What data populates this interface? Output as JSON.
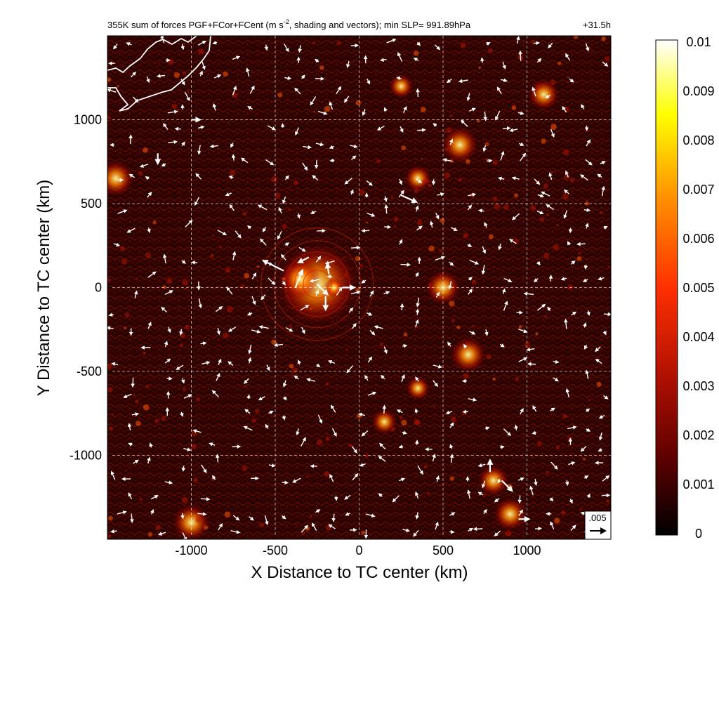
{
  "chart_data": {
    "type": "heatmap",
    "title": "355K sum of forces PGF+FCor+FCent (m s",
    "title_superscript": "-2",
    "title_suffix": ", shading and vectors); min SLP= 991.89hPa",
    "time_label": "+31.5h",
    "xlabel": "X Distance to TC center (km)",
    "ylabel": "Y Distance to TC center (km)",
    "xlim": [
      -1500,
      1500
    ],
    "ylim": [
      -1500,
      1500
    ],
    "xticks": [
      -1000,
      -500,
      0,
      500,
      1000
    ],
    "yticks": [
      -1000,
      -500,
      0,
      500,
      1000
    ],
    "xtick_labels": [
      "-1000",
      "-500",
      "0",
      "500",
      "1000"
    ],
    "ytick_labels": [
      "-1000",
      "-500",
      "0",
      "500",
      "1000"
    ],
    "grid": true,
    "grid_style": "dashed",
    "colormap": [
      "#000000",
      "#5a0000",
      "#b01000",
      "#ff3000",
      "#ff9000",
      "#ffff00",
      "#ffffff"
    ],
    "colorbar": {
      "min": 0,
      "max": 0.01,
      "tick_labels": [
        "0.01",
        "0.009",
        "0.008",
        "0.007",
        "0.006",
        "0.005",
        "0.004",
        "0.003",
        "0.002",
        "0.001",
        "0"
      ],
      "tick_values": [
        0.01,
        0.009,
        0.008,
        0.007,
        0.006,
        0.005,
        0.004,
        0.003,
        0.002,
        0.001,
        0
      ]
    },
    "reference_vector": {
      "label": ".005",
      "value": 0.005
    },
    "features": {
      "tc_center_km": [
        -250,
        20
      ],
      "hot_spots_km": [
        [
          -250,
          20
        ],
        [
          -150,
          0
        ],
        [
          -350,
          50
        ],
        [
          150,
          -800
        ],
        [
          350,
          -600
        ],
        [
          650,
          -400
        ],
        [
          800,
          -1150
        ],
        [
          350,
          650
        ],
        [
          600,
          850
        ],
        [
          -1450,
          650
        ],
        [
          1100,
          1150
        ],
        [
          500,
          0
        ],
        [
          900,
          -1350
        ],
        [
          -1000,
          -1400
        ],
        [
          250,
          1200
        ]
      ],
      "vectors_km": [
        [
          -450,
          100,
          -120,
          60
        ],
        [
          -380,
          0,
          40,
          100
        ],
        [
          -250,
          20,
          60,
          -60
        ],
        [
          -200,
          -50,
          0,
          -80
        ],
        [
          -100,
          0,
          70,
          0
        ],
        [
          -180,
          80,
          -10,
          60
        ],
        [
          -300,
          180,
          -60,
          -30
        ],
        [
          250,
          550,
          90,
          -40
        ],
        [
          850,
          -1150,
          60,
          -60
        ],
        [
          780,
          -1100,
          0,
          70
        ],
        [
          -1200,
          800,
          0,
          -60
        ],
        [
          -1000,
          1000,
          50,
          0
        ],
        [
          950,
          -1380,
          60,
          0
        ]
      ]
    }
  }
}
